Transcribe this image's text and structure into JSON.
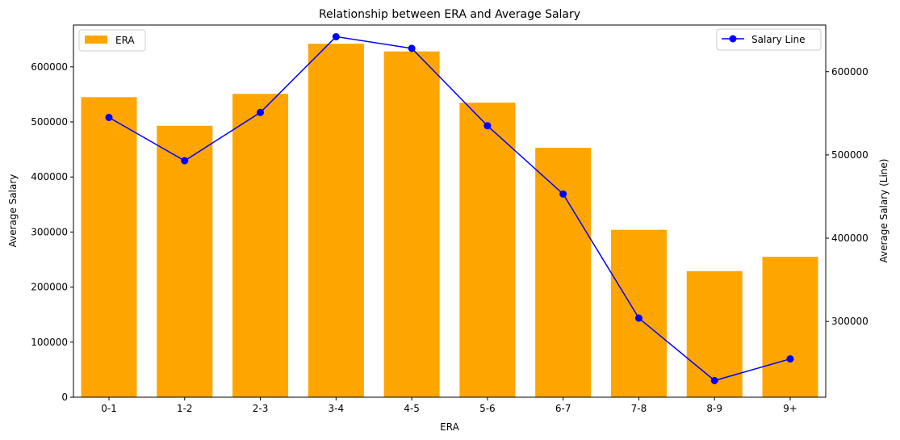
{
  "chart_data": {
    "type": "bar",
    "title": "Relationship between ERA and Average Salary",
    "xlabel": "ERA",
    "ylabel": "Average Salary",
    "y2label": "Average Salary (Line)",
    "categories": [
      "0-1",
      "1-2",
      "2-3",
      "3-4",
      "4-5",
      "5-6",
      "6-7",
      "7-8",
      "8-9",
      "9+"
    ],
    "ylim": [
      0,
      676000
    ],
    "y2lim": [
      209000,
      656000
    ],
    "yticks": [
      0,
      100000,
      200000,
      300000,
      400000,
      500000,
      600000
    ],
    "y2ticks": [
      300000,
      400000,
      500000,
      600000
    ],
    "grid": false,
    "series": [
      {
        "name": "ERA",
        "type": "bar",
        "axis": "left",
        "color": "#FFA500",
        "legend_position": "top-left",
        "values": [
          545000,
          493000,
          551000,
          642000,
          628000,
          535000,
          453000,
          304000,
          229000,
          255000
        ]
      },
      {
        "name": "Salary Line",
        "type": "line",
        "axis": "right",
        "color": "#0000FF",
        "marker": "circle",
        "legend_position": "top-right",
        "values": [
          545000,
          493000,
          551000,
          642000,
          628000,
          535000,
          453000,
          304000,
          229000,
          255000
        ]
      }
    ]
  }
}
